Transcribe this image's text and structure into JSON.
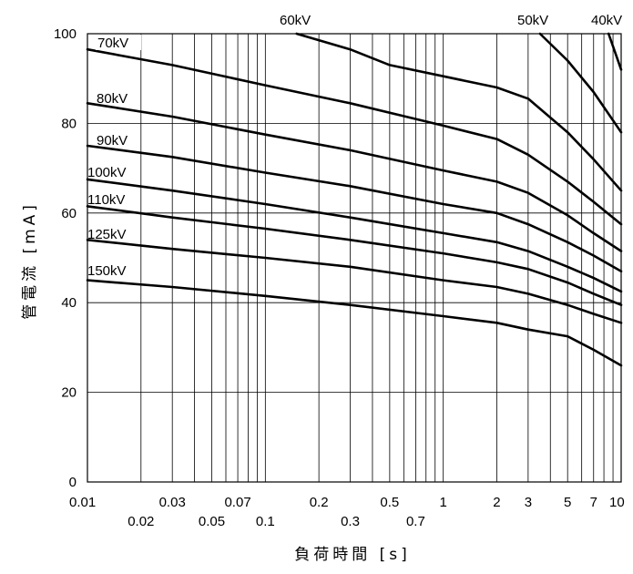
{
  "chart_data": {
    "type": "line",
    "xlabel": "負荷時間 [s]",
    "ylabel": "管電流 [mA]",
    "x_scale": "log",
    "xlim": [
      0.01,
      10
    ],
    "ylim": [
      0,
      100
    ],
    "grid": true,
    "x_ticks": [
      0.01,
      0.02,
      0.03,
      0.05,
      0.07,
      0.1,
      0.2,
      0.3,
      0.5,
      0.7,
      1,
      2,
      3,
      5,
      7,
      10
    ],
    "x_tick_labels": [
      "0.01",
      "0.02",
      "0.03",
      "0.05",
      "0.07",
      "0.1",
      "0.2",
      "0.3",
      "0.5",
      "0.7",
      "1",
      "2",
      "3",
      "5",
      "7",
      "10"
    ],
    "x_minor_grid": [
      0.04,
      0.06,
      0.08,
      0.09,
      0.4,
      0.6,
      0.8,
      0.9,
      4,
      6,
      8,
      9
    ],
    "y_ticks": [
      0,
      20,
      40,
      60,
      80,
      100
    ],
    "y_tick_labels": [
      "0",
      "20",
      "40",
      "60",
      "80",
      "100"
    ],
    "series": [
      {
        "name": "40kV",
        "x": [
          8.5,
          10
        ],
        "y": [
          100,
          92
        ]
      },
      {
        "name": "50kV",
        "x": [
          3.5,
          5,
          7,
          10
        ],
        "y": [
          100,
          94,
          87,
          78
        ]
      },
      {
        "name": "60kV",
        "x": [
          0.15,
          0.3,
          0.5,
          1,
          2,
          3,
          5,
          7,
          10
        ],
        "y": [
          100,
          96.5,
          93,
          90.5,
          88,
          85.5,
          78,
          72,
          65
        ]
      },
      {
        "name": "70kV",
        "x": [
          0.01,
          0.03,
          0.1,
          0.3,
          1,
          2,
          3,
          5,
          7,
          10
        ],
        "y": [
          96.5,
          93,
          88.5,
          84.5,
          79.5,
          76.5,
          73,
          67,
          62.5,
          57.5
        ]
      },
      {
        "name": "80kV",
        "x": [
          0.01,
          0.03,
          0.1,
          0.3,
          1,
          2,
          3,
          5,
          7,
          10
        ],
        "y": [
          84.5,
          81.5,
          77.5,
          74,
          69.5,
          67,
          64.5,
          59.5,
          55.5,
          51.5
        ]
      },
      {
        "name": "90kV",
        "x": [
          0.01,
          0.03,
          0.1,
          0.3,
          1,
          2,
          3,
          5,
          7,
          10
        ],
        "y": [
          75,
          72.5,
          69,
          66,
          62,
          60,
          57.5,
          53.5,
          50.5,
          47
        ]
      },
      {
        "name": "100kV",
        "x": [
          0.01,
          0.03,
          0.1,
          0.3,
          1,
          2,
          3,
          5,
          7,
          10
        ],
        "y": [
          67.5,
          65,
          62,
          59,
          55.5,
          53.5,
          51.5,
          48,
          45.5,
          42.5
        ]
      },
      {
        "name": "110kV",
        "x": [
          0.01,
          0.03,
          0.1,
          0.3,
          1,
          2,
          3,
          5,
          7,
          10
        ],
        "y": [
          61.5,
          59,
          56.5,
          54,
          51,
          49,
          47.5,
          44.5,
          42,
          39.5
        ]
      },
      {
        "name": "125kV",
        "x": [
          0.01,
          0.03,
          0.1,
          0.3,
          1,
          2,
          3,
          5,
          7,
          10
        ],
        "y": [
          54,
          52,
          50,
          48,
          45,
          43.5,
          42,
          39.5,
          37.5,
          35.5
        ]
      },
      {
        "name": "150kV",
        "x": [
          0.01,
          0.03,
          0.1,
          0.3,
          1,
          2,
          3,
          5,
          7,
          10
        ],
        "y": [
          45,
          43.5,
          41.5,
          39.5,
          37,
          35.5,
          34,
          32.5,
          29.5,
          26
        ]
      }
    ]
  }
}
